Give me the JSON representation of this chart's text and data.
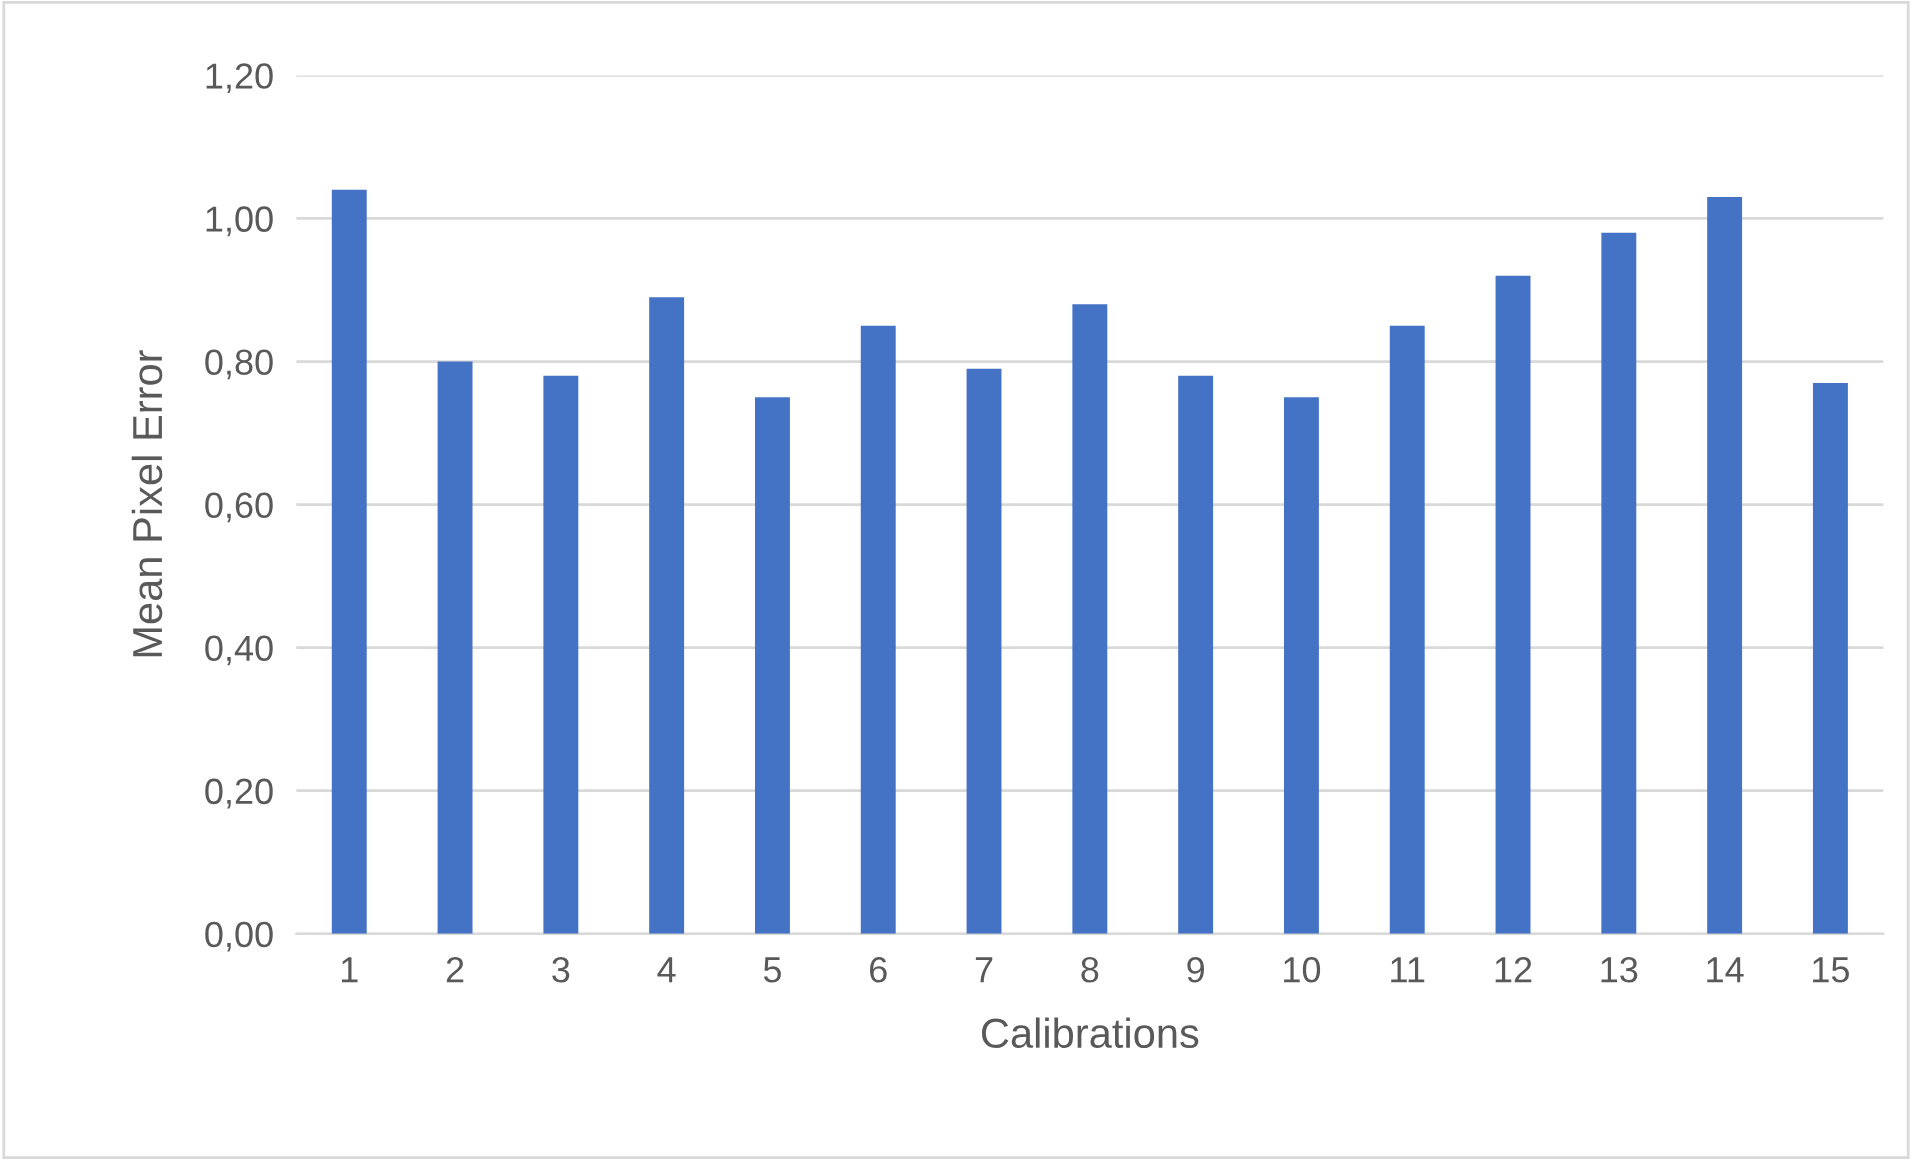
{
  "chart_data": {
    "type": "bar",
    "xlabel": "Calibrations",
    "ylabel": "Mean Pixel Error",
    "categories": [
      "1",
      "2",
      "3",
      "4",
      "5",
      "6",
      "7",
      "8",
      "9",
      "10",
      "11",
      "12",
      "13",
      "14",
      "15"
    ],
    "values": [
      1.04,
      0.8,
      0.78,
      0.89,
      0.75,
      0.85,
      0.79,
      0.88,
      0.78,
      0.75,
      0.85,
      0.92,
      0.98,
      1.03,
      0.77
    ],
    "color": "#4472c4",
    "ylim": [
      0,
      1.2
    ],
    "yticks": [
      {
        "value": 0,
        "label": "0,00"
      },
      {
        "value": 0.2,
        "label": "0,20"
      },
      {
        "value": 0.4,
        "label": "0,40"
      },
      {
        "value": 0.6,
        "label": "0,60"
      },
      {
        "value": 0.8,
        "label": "0,80"
      },
      {
        "value": 1.0,
        "label": "1,00"
      },
      {
        "value": 1.2,
        "label": "1,20"
      }
    ],
    "grid": "y",
    "legend": false
  }
}
